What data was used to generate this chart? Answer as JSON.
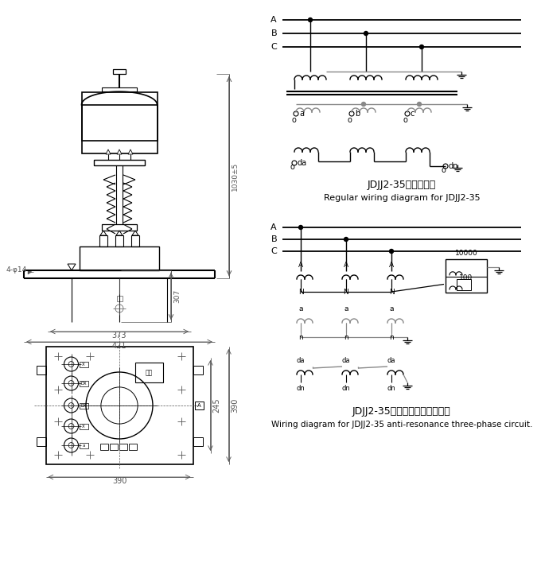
{
  "bg_color": "#ffffff",
  "lc": "#000000",
  "dc": "#555555",
  "gc": "#888888",
  "label1_cn": "JDJJ2-35常规接线图",
  "label1_en": "Regular wiring diagram for JDJJ2-35",
  "label2_cn": "JDJJ2-35抗谐振三相线路接线图",
  "label2_en": "Wiring diagram for JDJJ2-35 anti-resonance three-phase circuit.",
  "dim_1030": "1030±5",
  "dim_307": "307",
  "dim_373": "373",
  "dim_421": "421",
  "dim_4phi14": "4-φ14",
  "dim_245": "245",
  "dim_390s": "390",
  "dim_390b": "390",
  "dim_10000": "10000",
  "dim_100": "100"
}
